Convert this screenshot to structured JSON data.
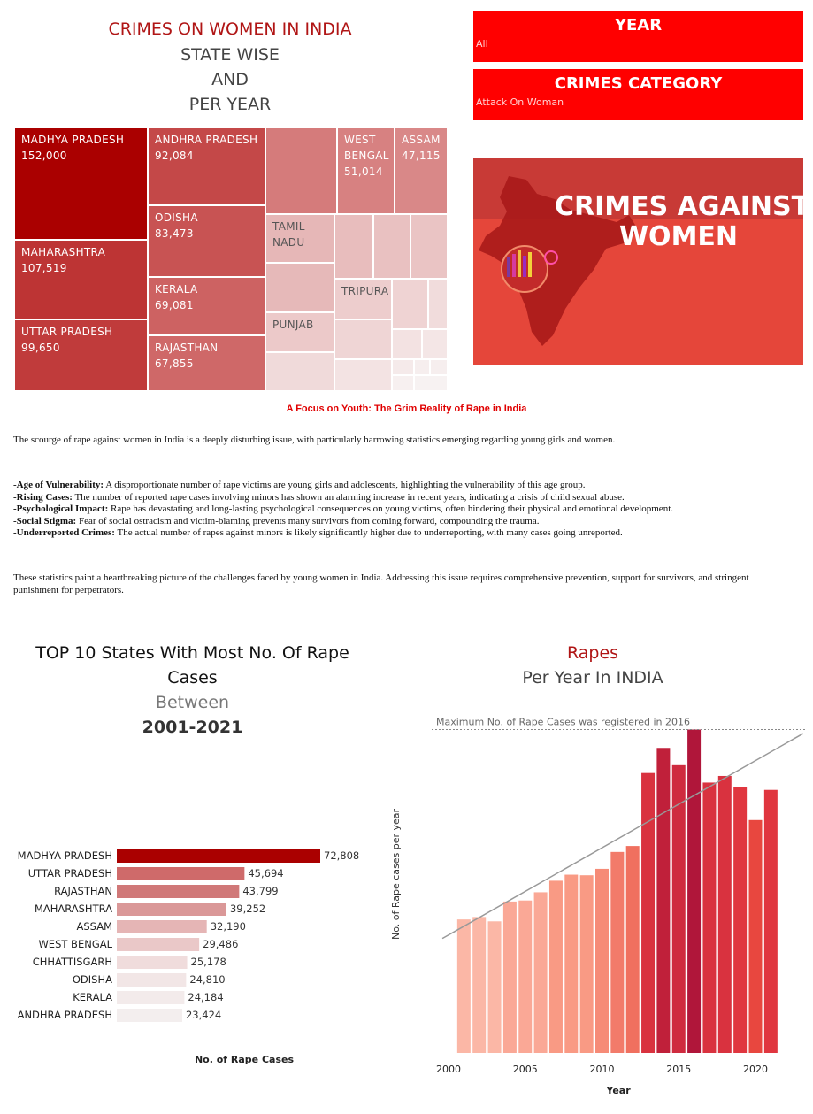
{
  "header": {
    "title_line1": "CRIMES ON WOMEN IN INDIA",
    "title_line2": "STATE WISE",
    "title_line3": "AND",
    "title_line4": "PER YEAR"
  },
  "filters": {
    "year": {
      "title": "YEAR",
      "value": "All"
    },
    "category": {
      "title": "CRIMES CATEGORY",
      "value": "Attack On Woman"
    }
  },
  "banner": {
    "line1": "CRIMES AGAINST",
    "line2": "WOMEN"
  },
  "treemap": {
    "cells": [
      {
        "name": "MADHYA PRADESH",
        "value": "152,000"
      },
      {
        "name": "MAHARASHTRA",
        "value": "107,519"
      },
      {
        "name": "UTTAR PRADESH",
        "value": "99,650"
      },
      {
        "name": "ANDHRA PRADESH",
        "value": "92,084"
      },
      {
        "name": "ODISHA",
        "value": "83,473"
      },
      {
        "name": "KERALA",
        "value": "69,081"
      },
      {
        "name": "RAJASTHAN",
        "value": "67,855"
      },
      {
        "name": "WEST BENGAL",
        "value": "51,014"
      },
      {
        "name": "ASSAM",
        "value": "47,115"
      },
      {
        "name": "TAMIL NADU",
        "value": ""
      },
      {
        "name": "TRIPURA",
        "value": ""
      },
      {
        "name": "PUNJAB",
        "value": ""
      }
    ]
  },
  "article": {
    "heading": "A Focus on Youth: The Grim Reality of Rape in India",
    "intro": "The scourge of rape against women in India is a deeply disturbing issue, with particularly harrowing statistics emerging regarding young girls and women.",
    "bullets": [
      {
        "label": "-Age of Vulnerability:",
        "text": " A disproportionate number of rape victims are young girls and adolescents, highlighting the vulnerability of this age group."
      },
      {
        "label": "-Rising Cases:",
        "text": " The number of reported rape cases involving minors has shown an alarming increase in recent years, indicating a crisis of child sexual abuse."
      },
      {
        "label": "-Psychological Impact:",
        "text": " Rape has devastating and long-lasting psychological consequences on young victims, often hindering their physical and emotional development."
      },
      {
        "label": "-Social Stigma:",
        "text": " Fear of social ostracism and victim-blaming prevents many survivors from coming forward, compounding the trauma."
      },
      {
        "label": "-Underreported Crimes:",
        "text": " The actual number of rapes against minors is likely significantly higher due to underreporting, with many cases going unreported."
      }
    ],
    "conclusion": "These statistics paint a heartbreaking picture of the challenges faced by young women in India. Addressing this issue requires comprehensive prevention, support for survivors, and stringent punishment for perpetrators."
  },
  "top10": {
    "title1": "TOP 10 States With Most No. Of Rape",
    "title2": "Cases",
    "title3": "Between",
    "title4": "2001-2021"
  },
  "rapes_chart": {
    "title1": "Rapes",
    "title2": "Per Year In INDIA",
    "annotation": "Maximum No. of Rape Cases was registered in 2016"
  },
  "chart_data": [
    {
      "type": "bar",
      "orientation": "horizontal",
      "title": "TOP 10 States With Most No. Of Rape Cases Between 2001-2021",
      "xlabel": "No. of Rape Cases",
      "categories": [
        "MADHYA PRADESH",
        "UTTAR PRADESH",
        "RAJASTHAN",
        "MAHARASHTRA",
        "ASSAM",
        "WEST BENGAL",
        "CHHATTISGARH",
        "ODISHA",
        "KERALA",
        "ANDHRA PRADESH"
      ],
      "values": [
        72808,
        45694,
        43799,
        39252,
        32190,
        29486,
        25178,
        24810,
        24184,
        23424
      ],
      "value_labels": [
        "72,808",
        "45,694",
        "43,799",
        "39,252",
        "32,190",
        "29,486",
        "25,178",
        "24,810",
        "24,184",
        "23,424"
      ],
      "colors": [
        "#aa0000",
        "#cf6a6a",
        "#d07878",
        "#da9898",
        "#e5b5b5",
        "#eac8c8",
        "#f0dcdc",
        "#f2e6e6",
        "#f3ebeb",
        "#f3eeee"
      ]
    },
    {
      "type": "bar",
      "title": "Rapes Per Year In INDIA",
      "xlabel": "Year",
      "ylabel": "No. of Rape  cases  per year",
      "x": [
        2001,
        2002,
        2003,
        2004,
        2005,
        2006,
        2007,
        2008,
        2009,
        2010,
        2011,
        2012,
        2013,
        2014,
        2015,
        2016,
        2017,
        2018,
        2019,
        2020,
        2021
      ],
      "values": [
        16075,
        16373,
        15847,
        18233,
        18359,
        19348,
        20737,
        21467,
        21397,
        22172,
        24206,
        24923,
        33707,
        36735,
        34651,
        38947,
        32559,
        33356,
        32033,
        28046,
        31677
      ],
      "xticks": [
        2000,
        2005,
        2010,
        2015,
        2020
      ],
      "trend_line": true,
      "max_year": 2016,
      "colors": [
        "#fbb7a6",
        "#fbb7a6",
        "#fbb7a6",
        "#faa896",
        "#faa896",
        "#faa896",
        "#f99a84",
        "#f99a84",
        "#f99a84",
        "#f68b77",
        "#f27b6a",
        "#f0705f",
        "#d9323f",
        "#c0203a",
        "#cf2b3f",
        "#b0163a",
        "#d9323f",
        "#d9323f",
        "#e0363f",
        "#e8473f",
        "#e0363f"
      ]
    }
  ]
}
